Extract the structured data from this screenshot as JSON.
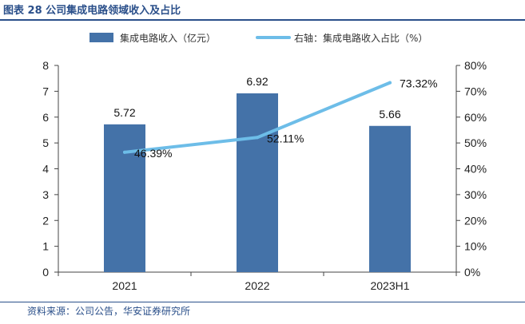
{
  "figure": {
    "title": "图表 28 公司集成电路领域收入及占比",
    "source": "资料来源：公司公告，华安证券研究所"
  },
  "chart_data": {
    "type": "bar",
    "categories": [
      "2021",
      "2022",
      "2023H1"
    ],
    "series": [
      {
        "name": "集成电路收入（亿元）",
        "type": "bar",
        "axis": "left",
        "values": [
          5.72,
          6.92,
          5.66
        ],
        "labels": [
          "5.72",
          "6.92",
          "5.66"
        ],
        "color": "#4472a8"
      },
      {
        "name": "右轴：集成电路收入占比（%）",
        "type": "line",
        "axis": "right",
        "values": [
          46.39,
          52.11,
          73.32
        ],
        "labels": [
          "46.39%",
          "52.11%",
          "73.32%"
        ],
        "color": "#6dbde8"
      }
    ],
    "y_left": {
      "min": 0,
      "max": 8,
      "ticks": [
        "0",
        "1",
        "2",
        "3",
        "4",
        "5",
        "6",
        "7",
        "8"
      ]
    },
    "y_right": {
      "min": 0,
      "max": 80,
      "ticks": [
        "0%",
        "10%",
        "20%",
        "30%",
        "40%",
        "50%",
        "60%",
        "70%",
        "80%"
      ]
    },
    "legend_position": "top",
    "grid": false
  }
}
